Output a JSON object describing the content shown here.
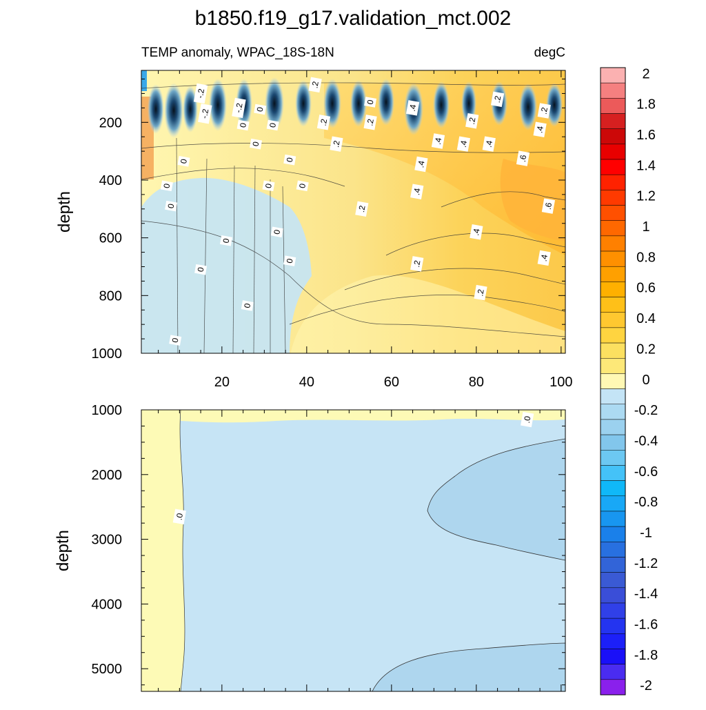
{
  "figure": {
    "title": "b1850.f19_g17.validation_mct.002",
    "subtitle_left": "TEMP anomaly, WPAC_18S-18N",
    "subtitle_right": "degC"
  },
  "chart_data": [
    {
      "type": "heatmap",
      "panel": "upper",
      "title": "TEMP anomaly, WPAC_18S-18N",
      "units": "degC",
      "xlabel": "",
      "ylabel": "depth",
      "xlim": [
        1,
        101
      ],
      "ylim": [
        1000,
        20
      ],
      "y_inverted": true,
      "x_ticks": [
        20,
        40,
        60,
        80,
        100
      ],
      "x_tick_labels": [
        "20",
        "40",
        "60",
        "80",
        "100"
      ],
      "y_ticks": [
        200,
        400,
        600,
        800,
        1000
      ],
      "y_tick_labels": [
        "200",
        "400",
        "600",
        "800",
        "1000"
      ],
      "contour_labels": [
        {
          "text": "-.2",
          "x": 15,
          "y": 100
        },
        {
          "text": ".2",
          "x": 42,
          "y": 70
        },
        {
          "text": ".2",
          "x": 85,
          "y": 120
        },
        {
          "text": "-.2",
          "x": 16,
          "y": 170
        },
        {
          "text": "-.2",
          "x": 24,
          "y": 150
        },
        {
          "text": "0",
          "x": 29,
          "y": 155
        },
        {
          "text": "0",
          "x": 55,
          "y": 130
        },
        {
          "text": ".4",
          "x": 65,
          "y": 150
        },
        {
          "text": ".2",
          "x": 96,
          "y": 160
        },
        {
          "text": ".2",
          "x": 44,
          "y": 200
        },
        {
          "text": ".2",
          "x": 55,
          "y": 200
        },
        {
          "text": ".2",
          "x": 79,
          "y": 195
        },
        {
          "text": "0",
          "x": 25,
          "y": 210
        },
        {
          "text": "0",
          "x": 32,
          "y": 210
        },
        {
          "text": ".4",
          "x": 95,
          "y": 225
        },
        {
          "text": ".4",
          "x": 71,
          "y": 265
        },
        {
          "text": ".2",
          "x": 47,
          "y": 275
        },
        {
          "text": "0",
          "x": 28,
          "y": 275
        },
        {
          "text": ".4",
          "x": 77,
          "y": 275
        },
        {
          "text": ".4",
          "x": 83,
          "y": 275
        },
        {
          "text": "0",
          "x": 11,
          "y": 335
        },
        {
          "text": "0",
          "x": 36,
          "y": 330
        },
        {
          "text": ".6",
          "x": 91,
          "y": 325
        },
        {
          "text": ".4",
          "x": 67,
          "y": 345
        },
        {
          "text": "0",
          "x": 7,
          "y": 420
        },
        {
          "text": "0",
          "x": 31,
          "y": 420
        },
        {
          "text": "0",
          "x": 39,
          "y": 420
        },
        {
          "text": ".4",
          "x": 66,
          "y": 440
        },
        {
          "text": "0",
          "x": 8,
          "y": 490
        },
        {
          "text": ".2",
          "x": 53,
          "y": 500
        },
        {
          "text": ".6",
          "x": 97,
          "y": 490
        },
        {
          "text": "0",
          "x": 33,
          "y": 580
        },
        {
          "text": ".4",
          "x": 80,
          "y": 580
        },
        {
          "text": "0",
          "x": 21,
          "y": 610
        },
        {
          "text": ".4",
          "x": 96,
          "y": 670
        },
        {
          "text": "0",
          "x": 36,
          "y": 680
        },
        {
          "text": ".2",
          "x": 66,
          "y": 690
        },
        {
          "text": "0",
          "x": 15,
          "y": 710
        },
        {
          "text": ".2",
          "x": 81,
          "y": 790
        },
        {
          "text": "0",
          "x": 26,
          "y": 835
        },
        {
          "text": "0",
          "x": 9,
          "y": 955
        }
      ]
    },
    {
      "type": "heatmap",
      "panel": "lower",
      "xlabel": "",
      "ylabel": "depth",
      "xlim": [
        1,
        101
      ],
      "ylim": [
        5350,
        1000
      ],
      "y_inverted": true,
      "x_ticks": [
        20,
        40,
        60,
        80,
        100
      ],
      "x_tick_labels": [],
      "y_ticks": [
        1000,
        2000,
        3000,
        4000,
        5000
      ],
      "y_tick_labels": [
        "1000",
        "2000",
        "3000",
        "4000",
        "5000"
      ],
      "contour_labels": [
        {
          "text": ".0",
          "x": 92,
          "y": 1150
        },
        {
          "text": ".0",
          "x": 10,
          "y": 2650
        }
      ]
    }
  ],
  "colorbar": {
    "labels": [
      "2",
      "1.8",
      "1.6",
      "1.4",
      "1.2",
      "1",
      "0.8",
      "0.6",
      "0.4",
      "0.2",
      "0",
      "-0.2",
      "-0.4",
      "-0.6",
      "-0.8",
      "-1",
      "-1.2",
      "-1.4",
      "-1.6",
      "-1.8",
      "-2"
    ],
    "colors_top_to_bottom": [
      "#fbb1b1",
      "#f58080",
      "#ec5a5a",
      "#d62020",
      "#cc0808",
      "#e80000",
      "#ff0000",
      "#ff2200",
      "#ff3a00",
      "#ff5000",
      "#ff6800",
      "#ff8000",
      "#ff9000",
      "#ffa000",
      "#ffb000",
      "#ffc018",
      "#ffc830",
      "#ffd440",
      "#fce060",
      "#fde878",
      "#fff8b4",
      "#c4e4f6",
      "#acdaf2",
      "#9bd1ef",
      "#82c6ec",
      "#6cc8f2",
      "#44c2f8",
      "#10b8f8",
      "#18a8f6",
      "#1896f0",
      "#1a80ea",
      "#2870e0",
      "#3264d8",
      "#3a5ad4",
      "#3a4ed8",
      "#3040e8",
      "#2434f0",
      "#1c20f8",
      "#1a10f8",
      "#4a2cf0",
      "#8a20ec"
    ]
  }
}
